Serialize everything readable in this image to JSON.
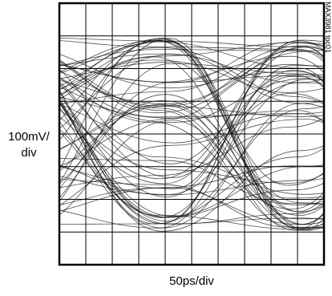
{
  "chart_data": {
    "type": "eye-diagram",
    "title": "",
    "xlabel": "50ps/div",
    "ylabel_line1": "100mV/",
    "ylabel_line2": "div",
    "divisions_x": 10,
    "divisions_y": 8,
    "grid": true,
    "series": [],
    "annotation": "MAX3981 toc01"
  }
}
